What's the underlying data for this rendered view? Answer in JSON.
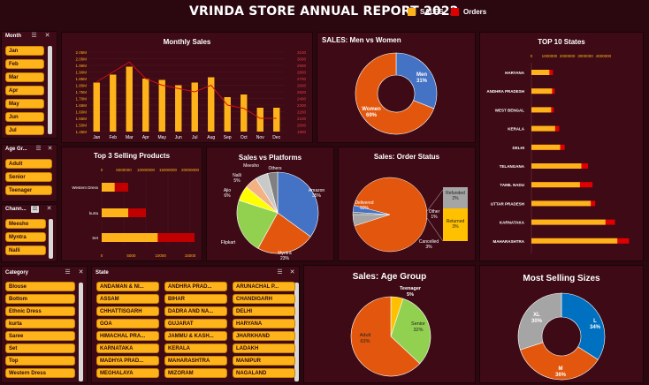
{
  "header": {
    "title": "VRINDA STORE ANNUAL REPORT 2022",
    "legend_sales": "SALES",
    "legend_orders": "Orders"
  },
  "colors": {
    "background": "#2b0710",
    "panel": "#3d0a16",
    "sales": "#ffb31a",
    "orders": "#e00000",
    "chip": "#ffb31a"
  },
  "slicers": {
    "month": {
      "title": "Month",
      "items": [
        "Jan",
        "Feb",
        "Mar",
        "Apr",
        "May",
        "Jun",
        "Jul"
      ]
    },
    "age_group": {
      "title": "Age Gr...",
      "items": [
        "Adult",
        "Senior",
        "Teenager"
      ]
    },
    "channel": {
      "title": "Chann...",
      "items": [
        "Meesho",
        "Myntra",
        "Nalli"
      ]
    },
    "category": {
      "title": "Category",
      "items": [
        "Blouse",
        "Bottom",
        "Ethnic Dress",
        "kurta",
        "Saree",
        "Set",
        "Top",
        "Western Dress"
      ]
    },
    "state": {
      "title": "State",
      "items": [
        "ANDAMAN & NI...",
        "ANDHRA PRAD...",
        "ARUNACHAL P...",
        "ASSAM",
        "BIHAR",
        "CHANDIGARH",
        "CHHATTISGARH",
        "DADRA AND NA...",
        "DELHI",
        "GOA",
        "GUJARAT",
        "HARYANA",
        "HIMACHAL PRA...",
        "JAMMU & KASH...",
        "JHARKHAND",
        "KARNATAKA",
        "KERALA",
        "LADAKH",
        "MADHYA PRAD...",
        "MAHARASHTRA",
        "MANIPUR",
        "MEGHALAYA",
        "MIZORAM",
        "NAGALAND"
      ]
    }
  },
  "chart_data": [
    {
      "id": "monthly_sales",
      "type": "bar",
      "title": "Monthly Sales",
      "categories": [
        "Jan",
        "Feb",
        "Mar",
        "Apr",
        "May",
        "Jun",
        "Jul",
        "Aug",
        "Sep",
        "Oct",
        "Nov",
        "Dec"
      ],
      "series": [
        {
          "name": "SALES",
          "type": "bar",
          "values": [
            1.82,
            1.88,
            1.94,
            1.85,
            1.84,
            1.8,
            1.82,
            1.86,
            1.71,
            1.73,
            1.63,
            1.63
          ]
        },
        {
          "name": "Orders",
          "type": "line",
          "values": [
            2650,
            2800,
            2950,
            2700,
            2600,
            2550,
            2500,
            2600,
            2300,
            2250,
            2100,
            2100
          ]
        }
      ],
      "y_ticks": [
        "1.45M",
        "1.50M",
        "1.55M",
        "1.60M",
        "1.65M",
        "1.70M",
        "1.75M",
        "1.80M",
        "1.85M",
        "1.90M",
        "1.95M",
        "2.00M",
        "2.05M"
      ],
      "y2_ticks": [
        "1900",
        "2000",
        "2100",
        "2200",
        "2300",
        "2400",
        "2500",
        "2600",
        "2700",
        "2800",
        "2900",
        "3000",
        "3100"
      ],
      "ylim": [
        1.45,
        2.05
      ],
      "y2lim": [
        1900,
        3100
      ]
    },
    {
      "id": "men_vs_women",
      "type": "pie",
      "title": "SALES: Men vs Women",
      "labels": [
        "Men",
        "Women"
      ],
      "values": [
        31,
        69
      ],
      "value_labels": [
        "31%",
        "69%"
      ],
      "colors": [
        "#4472c4",
        "#e2570d"
      ]
    },
    {
      "id": "top10_states",
      "type": "bar",
      "title": "TOP 10 States",
      "categories": [
        "HARYANA",
        "ANDHRA PRADESH",
        "WEST BENGAL",
        "KERALA",
        "DELHI",
        "TELANGANA",
        "TAMIL NADU",
        "UTTAR PRADESH",
        "KARNATAKA",
        "MAHARASHTRA"
      ],
      "series": [
        {
          "name": "SALES",
          "values": [
            1000000,
            1150000,
            1100000,
            1320000,
            1600000,
            2780000,
            2700000,
            3300000,
            4120000,
            4780000
          ]
        },
        {
          "name": "Orders",
          "values": [
            1200000,
            1300000,
            1250000,
            1550000,
            1850000,
            3150000,
            3400000,
            3550000,
            4650000,
            5430000
          ]
        }
      ],
      "x_ticks": [
        "0",
        "1000000",
        "2000000",
        "3000000",
        "4000000"
      ],
      "xlim": [
        0,
        6000000
      ]
    },
    {
      "id": "top3_products",
      "type": "bar",
      "title": "Top 3 Selling Products",
      "categories": [
        "Western Dress",
        "kurta",
        "Set"
      ],
      "series": [
        {
          "name": "SALES",
          "values": [
            6000000,
            10000000,
            21000000
          ]
        },
        {
          "name": "Orders",
          "values": [
            2200,
            4500,
            9500
          ]
        }
      ],
      "x_ticks_top": [
        "0",
        "5000000",
        "10000000",
        "15000000",
        "20000000"
      ],
      "x_ticks_bottom": [
        "0",
        "5000",
        "10000",
        "15000"
      ]
    },
    {
      "id": "sales_vs_platforms",
      "type": "pie",
      "title": "Sales vs Platforms",
      "labels": [
        "Amazon",
        "Myntra",
        "Flipkart",
        "Ajio",
        "Nalli",
        "Meesho",
        "Others"
      ],
      "values": [
        35,
        23,
        22,
        6,
        5,
        5,
        4
      ],
      "value_labels": [
        "35%",
        "23%",
        "",
        "6%",
        "5%",
        "",
        ""
      ],
      "colors": [
        "#4472c4",
        "#e2570d",
        "#92d050",
        "#ffff00",
        "#f4b183",
        "#c9c9c9",
        "#808080"
      ]
    },
    {
      "id": "order_status",
      "type": "pie",
      "title": "Sales: Order Status",
      "labels": [
        "Delivered",
        "Cancelled",
        "Other",
        "Refunded",
        "Returned"
      ],
      "values": [
        92,
        3,
        1,
        2,
        3
      ],
      "value_labels": [
        "92%",
        "3%",
        "1%",
        "2%",
        "3%"
      ],
      "colors": [
        "#e2570d",
        "#4472c4",
        "#7f7f7f",
        "#a5a5a5",
        "#ffc000"
      ]
    },
    {
      "id": "age_group",
      "type": "pie",
      "title": "Sales: Age Group",
      "labels": [
        "Adult",
        "Senior",
        "Teenager"
      ],
      "values": [
        63,
        32,
        5
      ],
      "value_labels": [
        "63%",
        "32%",
        "5%"
      ],
      "colors": [
        "#e2570d",
        "#92d050",
        "#ffc000"
      ]
    },
    {
      "id": "selling_sizes",
      "type": "pie",
      "title": "Most Selling Sizes",
      "labels": [
        "L",
        "M",
        "XL"
      ],
      "values": [
        34,
        36,
        30
      ],
      "value_labels": [
        "34%",
        "36%",
        "30%"
      ],
      "colors": [
        "#0070c0",
        "#e2570d",
        "#a5a5a5"
      ]
    }
  ]
}
